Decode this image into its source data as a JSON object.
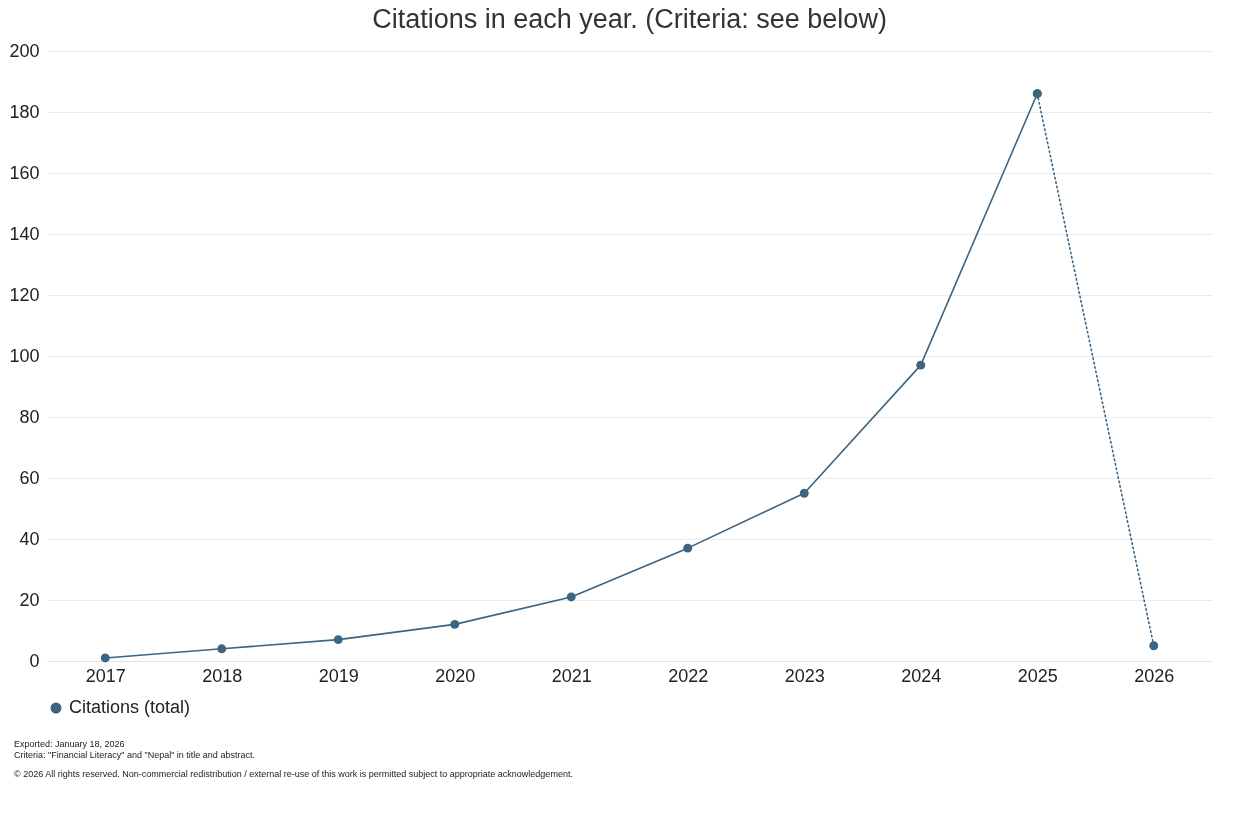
{
  "chart_data": {
    "type": "line",
    "title": "Citations in each year. (Criteria: see below)",
    "categories": [
      "2017",
      "2018",
      "2019",
      "2020",
      "2021",
      "2022",
      "2023",
      "2024",
      "2025",
      "2026"
    ],
    "series": [
      {
        "name": "Citations (total)",
        "color": "#3d6480",
        "values": [
          1,
          4,
          7,
          12,
          21,
          37,
          55,
          97,
          186,
          null
        ]
      },
      {
        "color": "#3d6480",
        "line_style": "dotted",
        "values": [
          null,
          null,
          null,
          null,
          null,
          null,
          null,
          null,
          186,
          5
        ]
      }
    ],
    "ylim": [
      0,
      200
    ],
    "yticks": [
      0,
      20,
      40,
      60,
      80,
      100,
      120,
      140,
      160,
      180,
      200
    ],
    "grid": "y",
    "legend": "bottom left",
    "marker": "circle",
    "annotations": [
      "Exported: January 18, 2026",
      "Criteria: \"Financial Literacy\" and \"Nepal\" in title and abstract.",
      "© 2026 All rights reserved. Non-commercial redistribution / external re-use of this work is permitted subject to appropriate acknowledgement."
    ]
  }
}
